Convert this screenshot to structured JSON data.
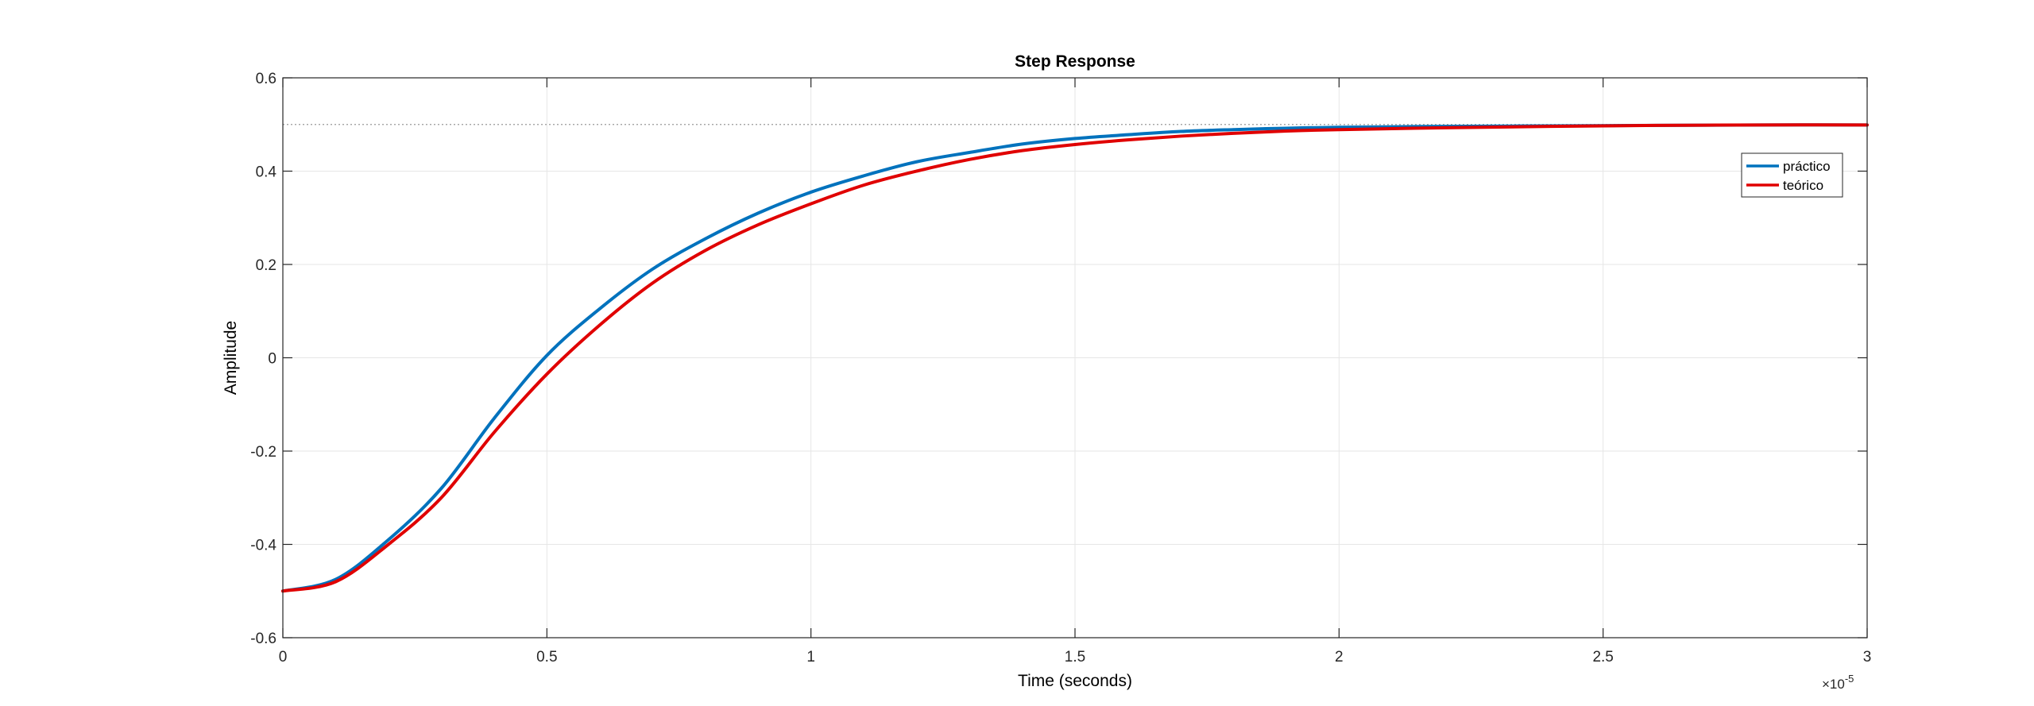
{
  "chart_data": {
    "type": "line",
    "title": "Step Response",
    "xlabel": "Time (seconds)",
    "ylabel": "Amplitude",
    "x_exponent_label": "×10",
    "x_exponent_power": "-5",
    "xlim": [
      0,
      3
    ],
    "ylim": [
      -0.6,
      0.6
    ],
    "xticks": [
      0,
      0.5,
      1,
      1.5,
      2,
      2.5,
      3
    ],
    "xtick_labels": [
      "0",
      "0.5",
      "1",
      "1.5",
      "2",
      "2.5",
      "3"
    ],
    "yticks": [
      -0.6,
      -0.4,
      -0.2,
      0,
      0.2,
      0.4,
      0.6
    ],
    "ytick_labels": [
      "-0.6",
      "-0.4",
      "-0.2",
      "0",
      "0.2",
      "0.4",
      "0.6"
    ],
    "grid": true,
    "legend_position": "top-right",
    "reference_line": {
      "y": 0.5,
      "style": "dotted",
      "color": "#999999"
    },
    "series": [
      {
        "name": "práctico",
        "color": "#0072bd",
        "x": [
          0,
          0.1,
          0.2,
          0.3,
          0.4,
          0.5,
          0.6,
          0.7,
          0.8,
          0.9,
          1.0,
          1.1,
          1.2,
          1.3,
          1.4,
          1.5,
          1.6,
          1.7,
          1.8,
          1.9,
          2.0,
          2.2,
          2.4,
          2.6,
          2.8,
          3.0
        ],
        "y": [
          -0.5,
          -0.475,
          -0.39,
          -0.28,
          -0.13,
          0.005,
          0.105,
          0.19,
          0.255,
          0.31,
          0.355,
          0.39,
          0.42,
          0.44,
          0.458,
          0.47,
          0.478,
          0.485,
          0.489,
          0.492,
          0.494,
          0.496,
          0.497,
          0.498,
          0.499,
          0.499
        ]
      },
      {
        "name": "teórico",
        "color": "#e00000",
        "x": [
          0,
          0.1,
          0.2,
          0.3,
          0.4,
          0.5,
          0.6,
          0.7,
          0.8,
          0.9,
          1.0,
          1.1,
          1.2,
          1.3,
          1.4,
          1.5,
          1.6,
          1.7,
          1.8,
          1.9,
          2.0,
          2.2,
          2.4,
          2.6,
          2.8,
          3.0
        ],
        "y": [
          -0.5,
          -0.48,
          -0.4,
          -0.3,
          -0.16,
          -0.035,
          0.07,
          0.16,
          0.23,
          0.285,
          0.33,
          0.37,
          0.4,
          0.425,
          0.444,
          0.457,
          0.467,
          0.475,
          0.481,
          0.486,
          0.489,
          0.493,
          0.496,
          0.498,
          0.499,
          0.499
        ]
      }
    ]
  }
}
